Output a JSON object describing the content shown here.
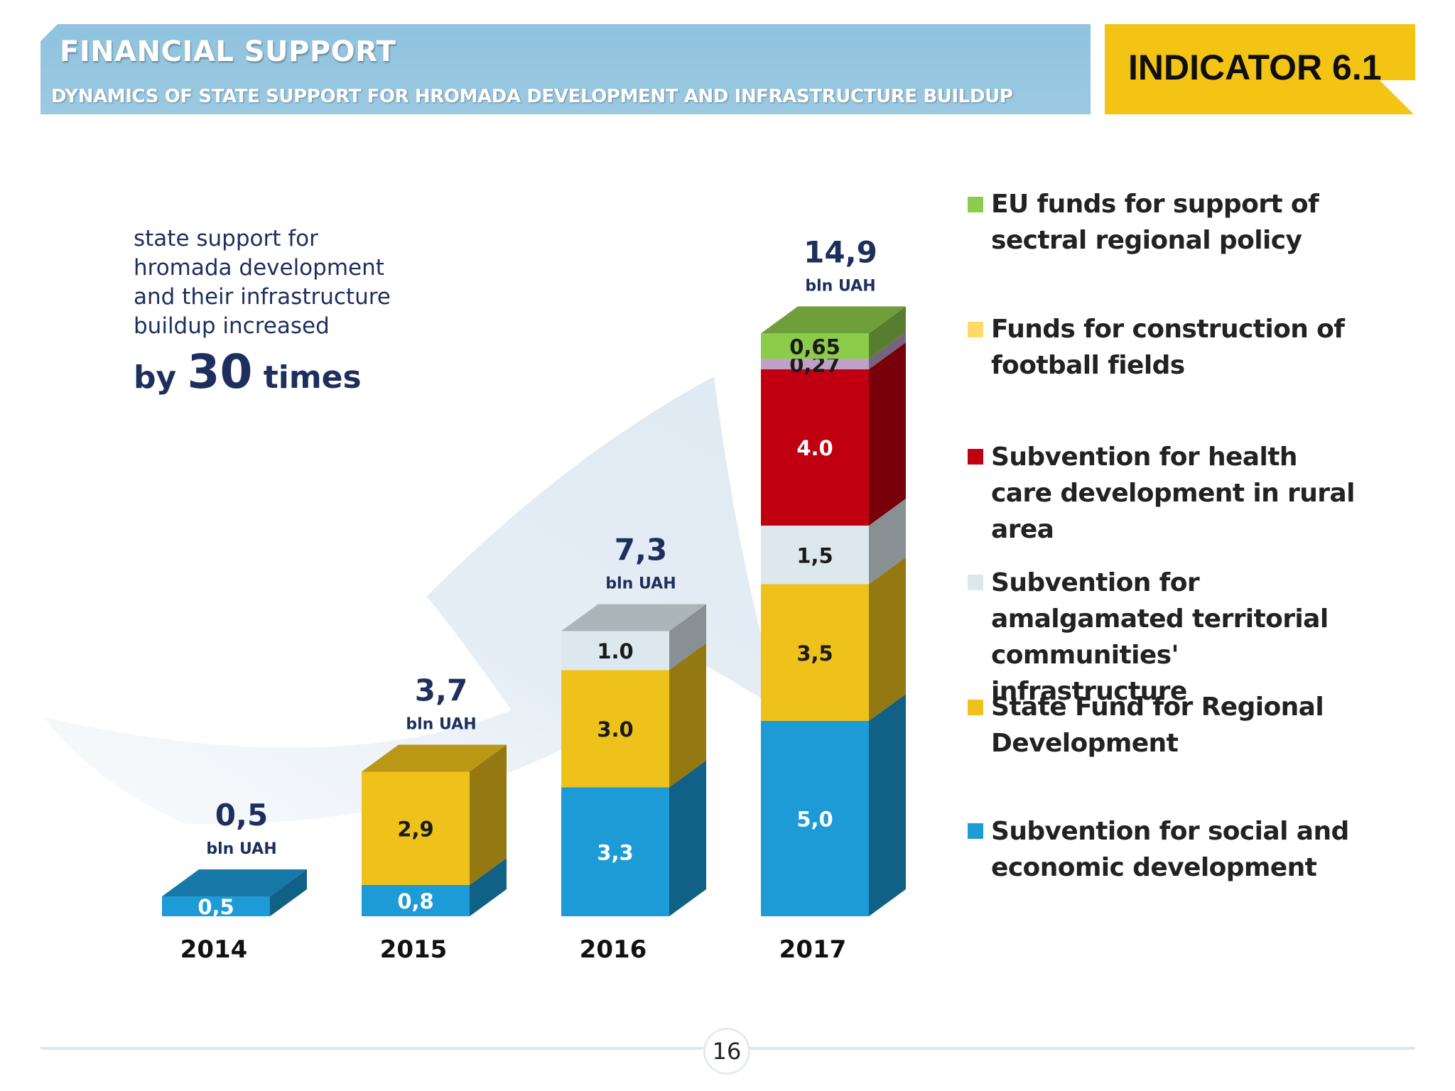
{
  "header": {
    "title": "FINANCIAL SUPPORT",
    "subtitle": "DYNAMICS OF STATE SUPPORT FOR HROMADA DEVELOPMENT AND INFRASTRUCTURE BUILDUP",
    "indicator": "INDICATOR 6.1"
  },
  "summary": {
    "lines": [
      "state support for",
      "hromada development",
      "and their infrastructure",
      "buildup increased"
    ],
    "prefix": "by",
    "number": "30",
    "suffix": "times"
  },
  "chart_data": {
    "type": "bar",
    "stacked": true,
    "categories": [
      "2014",
      "2015",
      "2016",
      "2017"
    ],
    "unit": "bln UAH",
    "totals": [
      {
        "label": "0,5",
        "unit": "bln UAH"
      },
      {
        "label": "3,7",
        "unit": "bln UAH"
      },
      {
        "label": "7,3",
        "unit": "bln UAH"
      },
      {
        "label": "14,9",
        "unit": "bln UAH"
      }
    ],
    "series": [
      {
        "name": "Subvention for social and economic development",
        "color": "#1c9bd7",
        "values": [
          0.5,
          0.8,
          3.3,
          5.0
        ],
        "labels": [
          "0,5",
          "0,8",
          "3,3",
          "5,0"
        ]
      },
      {
        "name": "State Fund for Regional Development",
        "color": "#eec21b",
        "values": [
          0,
          2.9,
          3.0,
          3.5
        ],
        "labels": [
          "",
          "2,9",
          "3.0",
          "3,5"
        ]
      },
      {
        "name": "Subvention for amalgamated territorial communities' infrastructure",
        "color": "#dde8ee",
        "values": [
          0,
          0,
          1.0,
          1.5
        ],
        "labels": [
          "",
          "",
          "1.0",
          "1,5"
        ]
      },
      {
        "name": "Subvention for health care development in rural area",
        "color": "#c00010",
        "values": [
          0,
          0,
          0,
          4.0
        ],
        "labels": [
          "",
          "",
          "",
          "4.0"
        ]
      },
      {
        "name": "Funds for construction of football fields",
        "color": "#bfa0c8",
        "values": [
          0,
          0,
          0,
          0.27
        ],
        "labels": [
          "",
          "",
          "",
          "0,27"
        ]
      },
      {
        "name": "EU funds for support of sectral regional policy",
        "color": "#8dcc4a",
        "values": [
          0,
          0,
          0,
          0.65
        ],
        "labels": [
          "",
          "",
          "",
          "0,65"
        ]
      }
    ],
    "legend": [
      {
        "name": "EU funds for support of sectral regional policy",
        "color": "#8dcc4a"
      },
      {
        "name": "Funds for construction of football fields",
        "color": "#ffd966"
      },
      {
        "name": "Subvention for health care development in rural area",
        "color": "#c00010"
      },
      {
        "name": "Subvention for amalgamated territorial communities' infrastructure",
        "color": "#dde8ee"
      },
      {
        "name": "State Fund for Regional Development",
        "color": "#eec21b"
      },
      {
        "name": "Subvention for social and economic development",
        "color": "#1c9bd7"
      }
    ]
  },
  "page_number": "16"
}
